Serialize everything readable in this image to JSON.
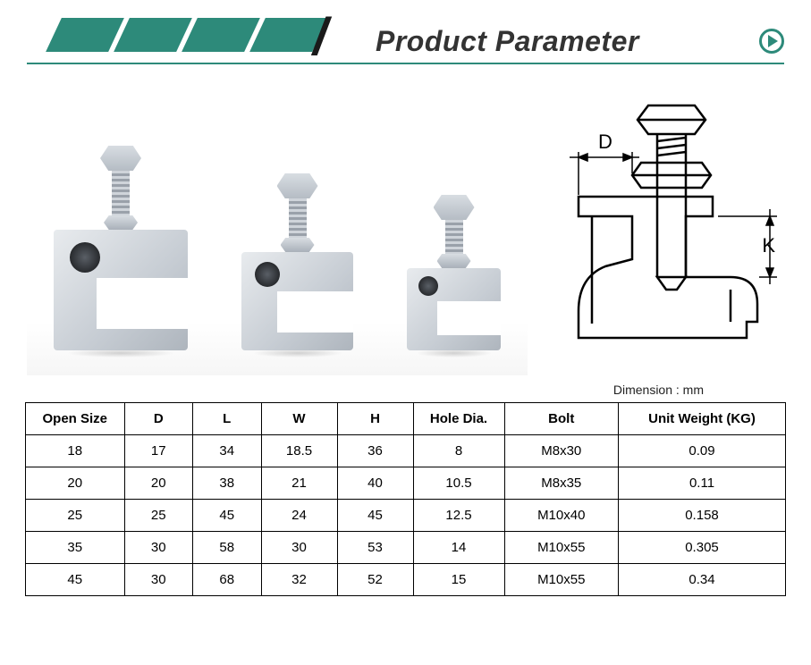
{
  "header": {
    "title": "Product Parameter",
    "accent_color": "#2d8a7a",
    "parallelogram_count": 4
  },
  "diagram": {
    "labels": {
      "D": "D",
      "K": "K"
    },
    "stroke_color": "#000000",
    "stroke_width": 2
  },
  "dimension_note": "Dimension : mm",
  "table": {
    "columns": [
      "Open Size",
      "D",
      "L",
      "W",
      "H",
      "Hole Dia.",
      "Bolt",
      "Unit Weight (KG)"
    ],
    "col_widths_pct": [
      13,
      9,
      9,
      10,
      10,
      12,
      15,
      22
    ],
    "rows": [
      [
        "18",
        "17",
        "34",
        "18.5",
        "36",
        "8",
        "M8x30",
        "0.09"
      ],
      [
        "20",
        "20",
        "38",
        "21",
        "40",
        "10.5",
        "M8x35",
        "0.11"
      ],
      [
        "25",
        "25",
        "45",
        "24",
        "45",
        "12.5",
        "M10x40",
        "0.158"
      ],
      [
        "35",
        "30",
        "58",
        "30",
        "53",
        "14",
        "M10x55",
        "0.305"
      ],
      [
        "45",
        "30",
        "68",
        "32",
        "52",
        "15",
        "M10x55",
        "0.34"
      ]
    ],
    "border_color": "#000000",
    "header_fontsize": 15,
    "cell_fontsize": 15
  },
  "photo": {
    "clamp_sizes": [
      {
        "body_w": 150,
        "body_h": 135,
        "shaft_h": 50,
        "hole_d": 34
      },
      {
        "body_w": 125,
        "body_h": 110,
        "shaft_h": 44,
        "hole_d": 28
      },
      {
        "body_w": 105,
        "body_h": 92,
        "shaft_h": 38,
        "hole_d": 22
      }
    ],
    "metal_light": "#e8ebee",
    "metal_dark": "#aeb5bd"
  }
}
